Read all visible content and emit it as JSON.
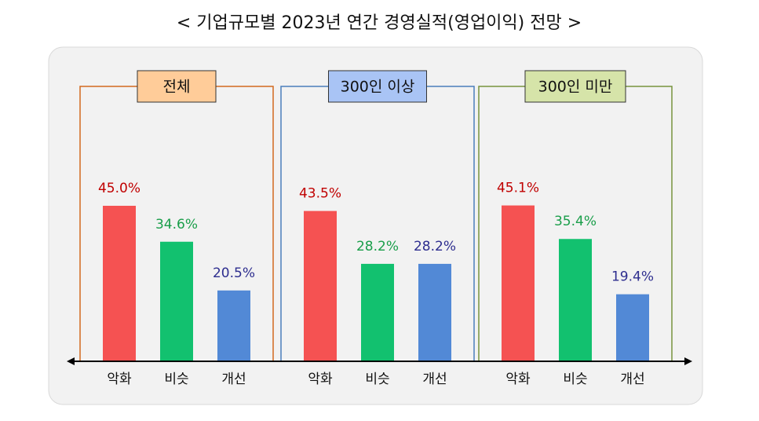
{
  "title": "< 기업규모별 2023년 연간 경영실적(영업이익) 전망 >",
  "chart_data": [
    {
      "type": "bar",
      "title": "전체",
      "categories": [
        "악화",
        "비슷",
        "개선"
      ],
      "values": [
        45.0,
        34.6,
        20.5
      ],
      "value_labels": [
        "45.0%",
        "34.6%",
        "20.5%"
      ],
      "colors": [
        "#f55252",
        "#12c16f",
        "#5289d6"
      ],
      "label_colors": [
        "#c00000",
        "#1a9e4a",
        "#2e2e8f"
      ],
      "frame_color": "#d2691e",
      "header_color": "#ffcc99",
      "ylim": [
        0,
        50
      ]
    },
    {
      "type": "bar",
      "title": "300인 이상",
      "categories": [
        "악화",
        "비슷",
        "개선"
      ],
      "values": [
        43.5,
        28.2,
        28.2
      ],
      "value_labels": [
        "43.5%",
        "28.2%",
        "28.2%"
      ],
      "colors": [
        "#f55252",
        "#12c16f",
        "#5289d6"
      ],
      "label_colors": [
        "#c00000",
        "#1a9e4a",
        "#2e2e8f"
      ],
      "frame_color": "#4a7ebb",
      "header_color": "#a9c4f5",
      "ylim": [
        0,
        50
      ]
    },
    {
      "type": "bar",
      "title": "300인 미만",
      "categories": [
        "악화",
        "비슷",
        "개선"
      ],
      "values": [
        45.1,
        35.4,
        19.4
      ],
      "value_labels": [
        "45.1%",
        "35.4%",
        "19.4%"
      ],
      "colors": [
        "#f55252",
        "#12c16f",
        "#5289d6"
      ],
      "label_colors": [
        "#c00000",
        "#1a9e4a",
        "#2e2e8f"
      ],
      "frame_color": "#77933c",
      "header_color": "#d6e4a9",
      "ylim": [
        0,
        50
      ]
    }
  ]
}
